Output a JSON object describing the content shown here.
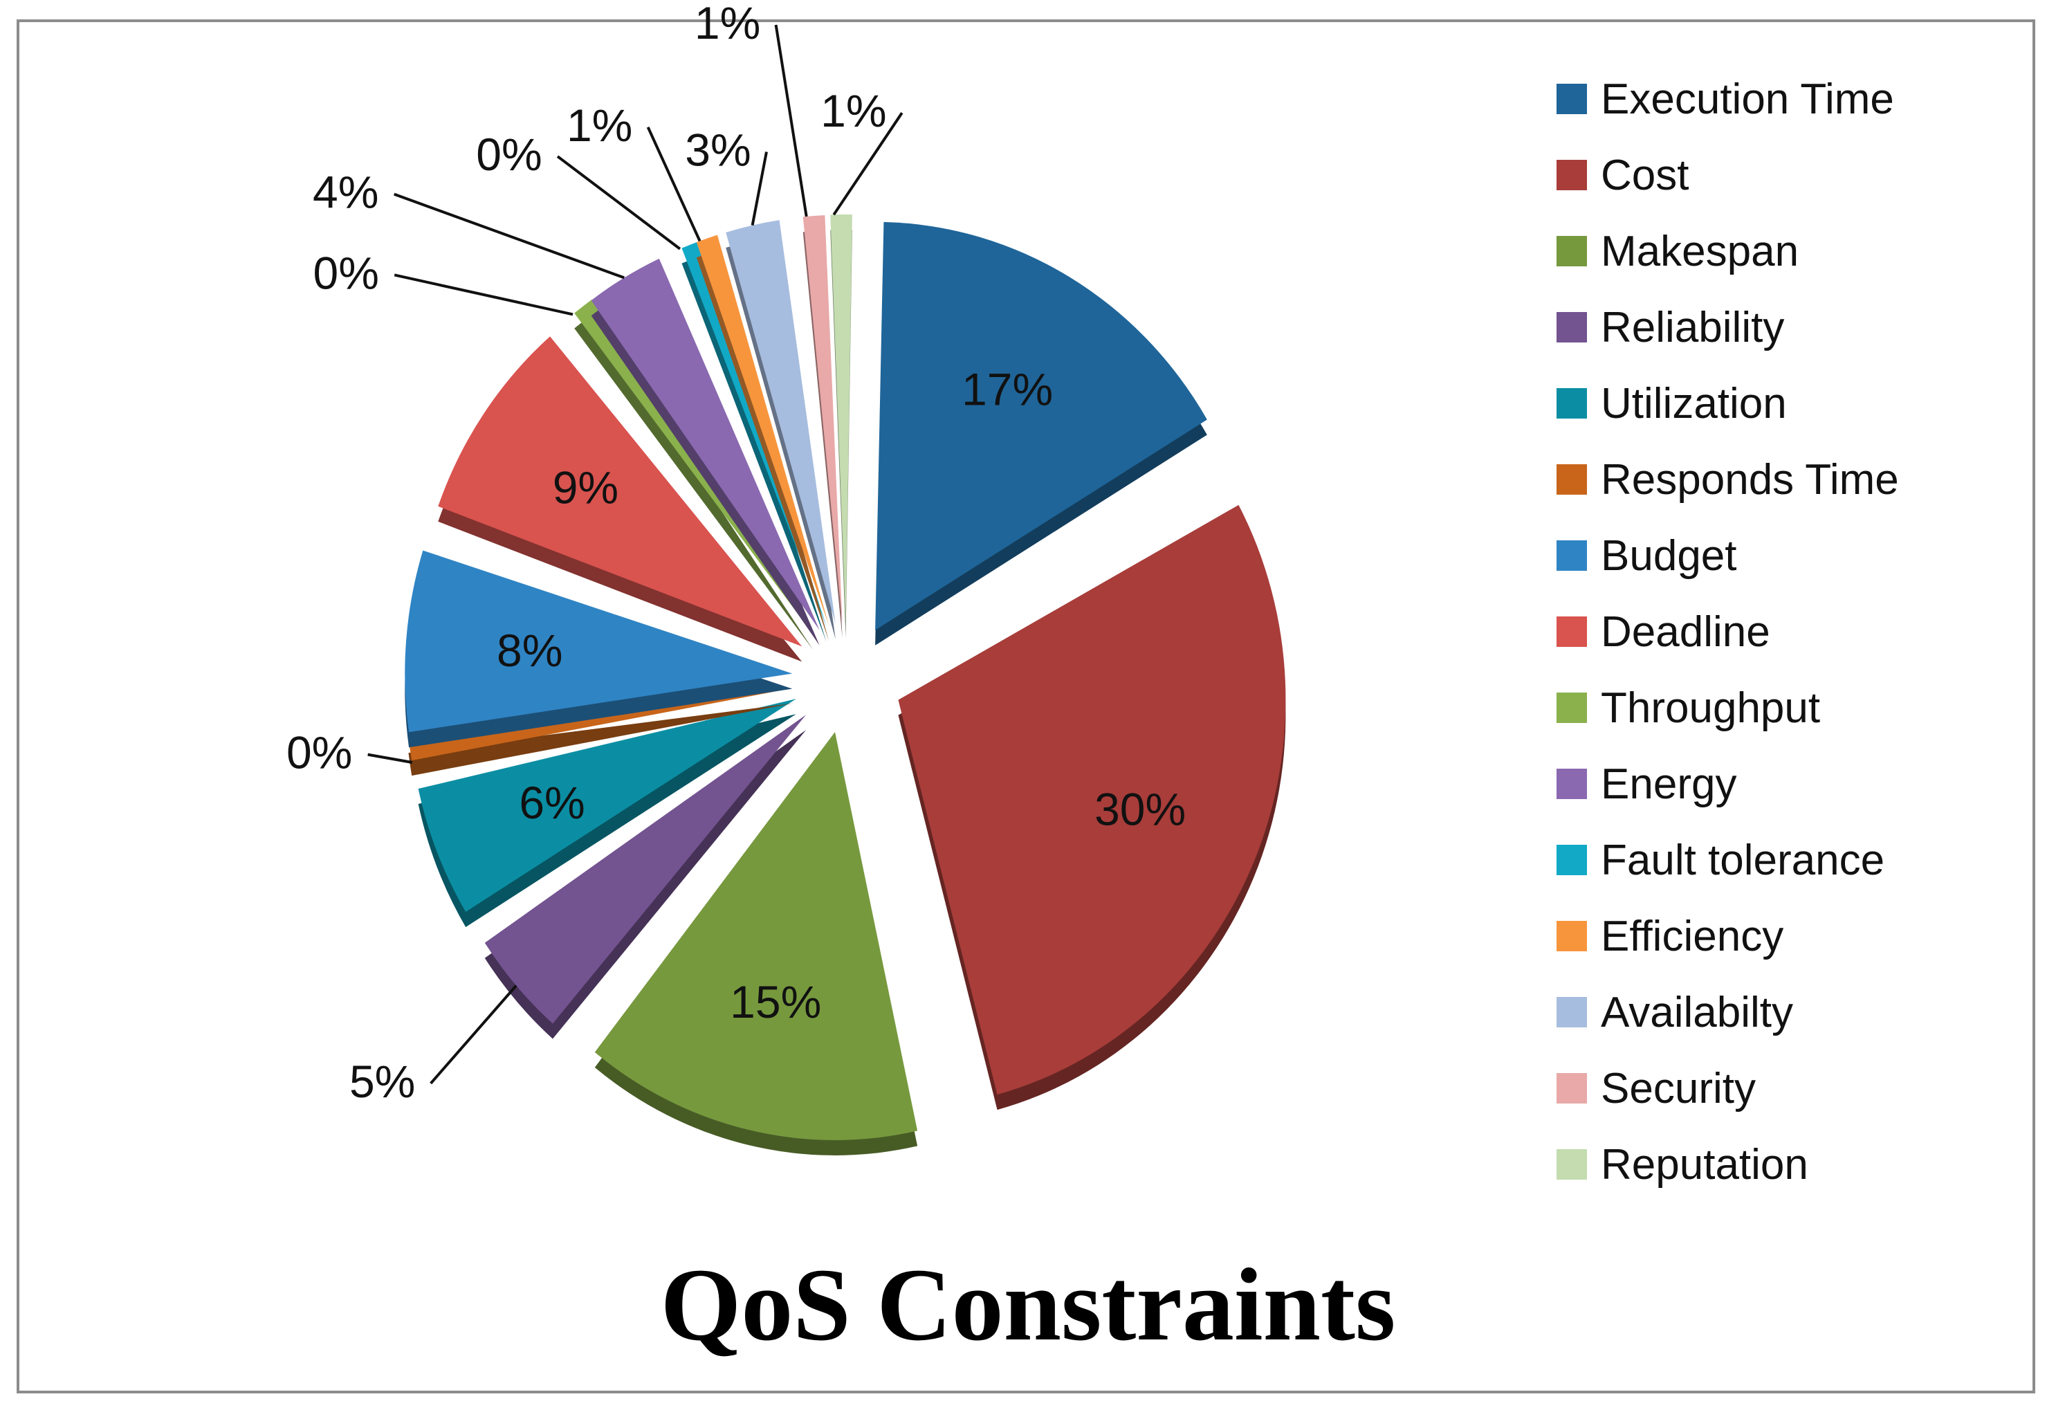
{
  "chart_data": {
    "type": "pie",
    "title": "QoS Constraints",
    "legend_position": "right",
    "categories": [
      "Execution Time",
      "Cost",
      "Makespan",
      "Reliability",
      "Utilization",
      "Responds Time",
      "Budget",
      "Deadline",
      "Throughput",
      "Energy",
      "Fault tolerance",
      "Efficiency",
      "Availabilty",
      "Security",
      "Reputation"
    ],
    "values": [
      17,
      30,
      15,
      5,
      6,
      0,
      8,
      9,
      0,
      4,
      0,
      1,
      3,
      1,
      1
    ],
    "labels": [
      "17%",
      "30%",
      "15%",
      "5%",
      "6%",
      "0%",
      "8%",
      "9%",
      "0%",
      "4%",
      "0%",
      "1%",
      "3%",
      "1%",
      "1%"
    ],
    "colors": [
      "#1f6599",
      "#a83d3a",
      "#77993e",
      "#735390",
      "#0b8ea3",
      "#c8651a",
      "#2f84c4",
      "#d9534f",
      "#8ab14c",
      "#8a69b0",
      "#12a9c6",
      "#f7953d",
      "#a7bddf",
      "#e8a9a8",
      "#c4dcb0"
    ]
  }
}
